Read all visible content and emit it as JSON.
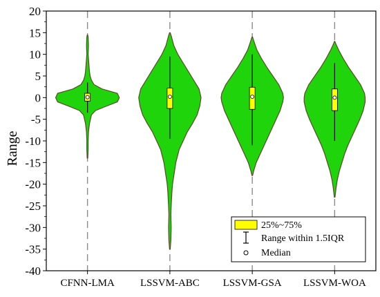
{
  "chart_data": {
    "type": "violin",
    "ylabel": "Range",
    "xlabel": "",
    "ylim": [
      -40,
      20
    ],
    "yticks": [
      20,
      15,
      10,
      5,
      0,
      -5,
      -10,
      -15,
      -20,
      -25,
      -30,
      -35,
      -40
    ],
    "categories": [
      "CFNN-LMA",
      "LSSVM-ABC",
      "LSSVM-GSA",
      "LSSVM-WOA"
    ],
    "fill_color": "#1fd40a",
    "outline_color": "#5a4a2a",
    "box_color": "#ffff00",
    "dashed_line_color": "#8a8a8a",
    "legend": {
      "box_label": "25%~75%",
      "whisker_label": "Range within 1.5IQR",
      "median_label": "Median",
      "placement": "bottom-right"
    },
    "series": [
      {
        "category": "CFNN-LMA",
        "min": -14,
        "max": 14.5,
        "q1": -0.8,
        "median": 0.1,
        "q3": 1.0,
        "whisker_low": -3.5,
        "whisker_high": 3.5,
        "density": [
          [
            -14,
            0.5
          ],
          [
            -12,
            1
          ],
          [
            -10,
            1
          ],
          [
            -8,
            1.5
          ],
          [
            -6,
            3
          ],
          [
            -4,
            6
          ],
          [
            -3,
            12
          ],
          [
            -2,
            28
          ],
          [
            -1,
            45
          ],
          [
            0,
            48
          ],
          [
            1,
            45
          ],
          [
            2,
            22
          ],
          [
            3,
            10
          ],
          [
            4,
            6
          ],
          [
            5,
            4
          ],
          [
            6,
            3
          ],
          [
            8,
            2
          ],
          [
            10,
            1
          ],
          [
            12,
            1.5
          ],
          [
            14,
            1
          ],
          [
            14.5,
            0.3
          ]
        ]
      },
      {
        "category": "LSSVM-ABC",
        "min": -35,
        "max": 15,
        "q1": -2.5,
        "median": 0.2,
        "q3": 2.2,
        "whisker_low": -9.5,
        "whisker_high": 9.5,
        "density": [
          [
            -35,
            0.5
          ],
          [
            -33,
            1.5
          ],
          [
            -30,
            2
          ],
          [
            -27,
            1.5
          ],
          [
            -25,
            2
          ],
          [
            -22,
            3
          ],
          [
            -20,
            4
          ],
          [
            -18,
            6
          ],
          [
            -15,
            9
          ],
          [
            -12,
            14
          ],
          [
            -10,
            20
          ],
          [
            -8,
            26
          ],
          [
            -6,
            34
          ],
          [
            -4,
            41
          ],
          [
            -2,
            45
          ],
          [
            0,
            47
          ],
          [
            2,
            44
          ],
          [
            4,
            36
          ],
          [
            6,
            28
          ],
          [
            8,
            20
          ],
          [
            10,
            12
          ],
          [
            12,
            6
          ],
          [
            14,
            2.5
          ],
          [
            15,
            0.5
          ]
        ]
      },
      {
        "category": "LSSVM-GSA",
        "min": -18,
        "max": 14,
        "q1": -2.7,
        "median": 0.2,
        "q3": 2.4,
        "whisker_low": -11,
        "whisker_high": 10,
        "density": [
          [
            -18,
            0.5
          ],
          [
            -17,
            2
          ],
          [
            -15,
            6
          ],
          [
            -13,
            12
          ],
          [
            -11,
            18
          ],
          [
            -9,
            24
          ],
          [
            -7,
            30
          ],
          [
            -5,
            36
          ],
          [
            -3,
            42
          ],
          [
            -1,
            46
          ],
          [
            0,
            47
          ],
          [
            1,
            46
          ],
          [
            3,
            40
          ],
          [
            5,
            31
          ],
          [
            7,
            22
          ],
          [
            9,
            14
          ],
          [
            11,
            7
          ],
          [
            13,
            2.5
          ],
          [
            14,
            0.5
          ]
        ]
      },
      {
        "category": "LSSVM-WOA",
        "min": -23,
        "max": 13,
        "q1": -3,
        "median": 0,
        "q3": 2,
        "whisker_low": -10,
        "whisker_high": 8,
        "density": [
          [
            -23,
            0.5
          ],
          [
            -21,
            2
          ],
          [
            -19,
            4
          ],
          [
            -17,
            7
          ],
          [
            -15,
            11
          ],
          [
            -13,
            15
          ],
          [
            -11,
            20
          ],
          [
            -9,
            26
          ],
          [
            -7,
            32
          ],
          [
            -5,
            38
          ],
          [
            -3,
            43
          ],
          [
            -1,
            46
          ],
          [
            0,
            46
          ],
          [
            1,
            45
          ],
          [
            3,
            39
          ],
          [
            5,
            30
          ],
          [
            7,
            21
          ],
          [
            9,
            13
          ],
          [
            11,
            6
          ],
          [
            12.5,
            1.5
          ],
          [
            13,
            0.3
          ]
        ]
      }
    ]
  }
}
